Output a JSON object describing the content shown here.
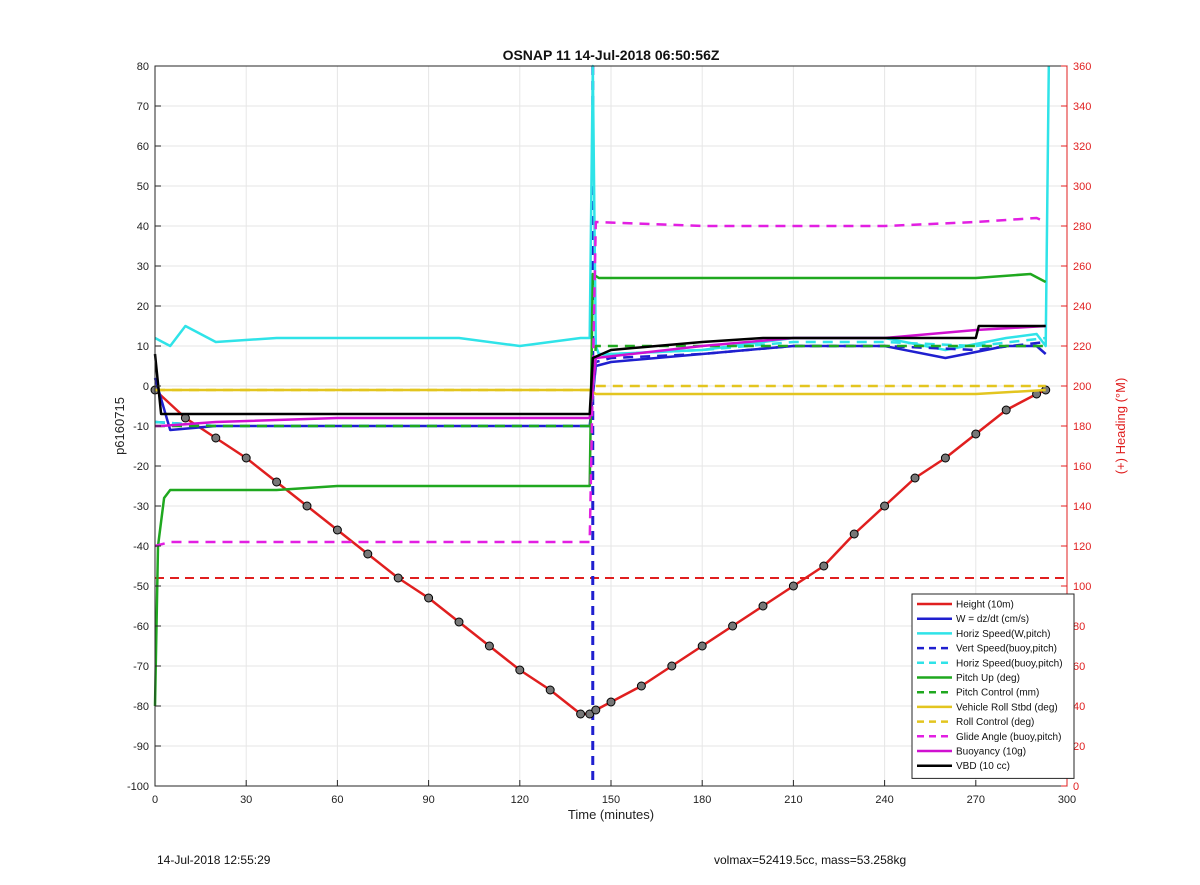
{
  "chart_data": {
    "type": "line",
    "title": "OSNAP 11 14-Jul-2018 06:50:56Z",
    "xlabel": "Time (minutes)",
    "ylabel": "p6160715",
    "y2label": "(+) Heading (°M)",
    "xlim": [
      0,
      300
    ],
    "ylim": [
      -100,
      80
    ],
    "y2lim": [
      0,
      360
    ],
    "xticks": [
      0,
      30,
      60,
      90,
      120,
      150,
      180,
      210,
      240,
      270,
      300
    ],
    "yticks": [
      -100,
      -90,
      -80,
      -70,
      -60,
      -50,
      -40,
      -30,
      -20,
      -10,
      0,
      10,
      20,
      30,
      40,
      50,
      60,
      70,
      80
    ],
    "y2ticks": [
      0,
      20,
      40,
      60,
      80,
      100,
      120,
      140,
      160,
      180,
      200,
      220,
      240,
      260,
      280,
      300,
      320,
      340,
      360
    ],
    "grid": true,
    "legend_position": "bottom-right",
    "series": [
      {
        "name": "Height (10m)",
        "color": "#e01f1f",
        "style": "solid-markers",
        "x": [
          0,
          10,
          20,
          30,
          40,
          50,
          60,
          70,
          80,
          90,
          100,
          110,
          120,
          130,
          140,
          143,
          145,
          150,
          160,
          170,
          180,
          190,
          200,
          210,
          220,
          230,
          240,
          250,
          260,
          270,
          280,
          290,
          293
        ],
        "y": [
          -1,
          -8,
          -13,
          -18,
          -24,
          -30,
          -36,
          -42,
          -48,
          -53,
          -59,
          -65,
          -71,
          -76,
          -82,
          -82,
          -81,
          -79,
          -75,
          -70,
          -65,
          -60,
          -55,
          -50,
          -45,
          -37,
          -30,
          -23,
          -18,
          -12,
          -6,
          -2,
          -1
        ]
      },
      {
        "name": "W = dz/dt (cm/s)",
        "color": "#1f1fcf",
        "style": "solid",
        "x": [
          0,
          5,
          20,
          60,
          100,
          143,
          145,
          150,
          180,
          210,
          240,
          260,
          280,
          290,
          293
        ],
        "y": [
          2,
          -11,
          -10,
          -10,
          -10,
          -10,
          5,
          6,
          8,
          10,
          10,
          7,
          10,
          10,
          8
        ]
      },
      {
        "name": "Horiz Speed(W,pitch)",
        "color": "#2fe3e8",
        "style": "solid",
        "x": [
          0,
          5,
          10,
          20,
          40,
          60,
          80,
          100,
          120,
          140,
          143,
          144,
          145,
          146,
          150,
          180,
          210,
          240,
          260,
          280,
          290,
          293,
          294
        ],
        "y": [
          12,
          10,
          15,
          11,
          12,
          12,
          12,
          12,
          10,
          12,
          12,
          80,
          10,
          8,
          8,
          9,
          12,
          12,
          9,
          12,
          13,
          10,
          80
        ]
      },
      {
        "name": "Vert Speed(buoy,pitch)",
        "color": "#1f1fcf",
        "style": "dashed",
        "x": [
          0,
          20,
          60,
          100,
          143,
          145,
          150,
          180,
          210,
          240,
          270,
          293
        ],
        "y": [
          -9,
          -10,
          -10,
          -10,
          -10,
          6,
          7,
          8,
          10,
          10,
          9,
          11
        ]
      },
      {
        "name": "Horiz Speed(buoy,pitch)",
        "color": "#2fe3e8",
        "style": "dashed",
        "x": [
          0,
          20,
          60,
          100,
          143,
          145,
          150,
          180,
          210,
          240,
          270,
          293
        ],
        "y": [
          -9,
          -10,
          -10,
          -10,
          -10,
          7,
          8,
          9,
          11,
          11,
          10,
          12
        ]
      },
      {
        "name": "Pitch Up (deg)",
        "color": "#1fa81f",
        "style": "solid",
        "x": [
          0,
          1,
          3,
          5,
          20,
          40,
          60,
          80,
          100,
          120,
          140,
          143,
          144,
          146,
          150,
          180,
          210,
          240,
          270,
          288,
          293
        ],
        "y": [
          -80,
          -40,
          -28,
          -26,
          -26,
          -26,
          -25,
          -25,
          -25,
          -25,
          -25,
          -25,
          28,
          27,
          27,
          27,
          27,
          27,
          27,
          28,
          26
        ]
      },
      {
        "name": "Pitch Control (mm)",
        "color": "#1fa81f",
        "style": "dashed",
        "x": [
          0,
          20,
          60,
          100,
          143,
          145,
          180,
          210,
          240,
          270,
          293
        ],
        "y": [
          -10,
          -10,
          -10,
          -10,
          -10,
          10,
          10,
          10,
          10,
          10,
          10
        ]
      },
      {
        "name": "Vehicle Roll Stbd (deg)",
        "color": "#e3c51f",
        "style": "solid",
        "x": [
          0,
          20,
          60,
          100,
          143,
          145,
          180,
          210,
          240,
          270,
          293
        ],
        "y": [
          -1,
          -1,
          -1,
          -1,
          -1,
          -2,
          -2,
          -2,
          -2,
          -2,
          -1
        ]
      },
      {
        "name": "Roll Control (deg)",
        "color": "#e3c51f",
        "style": "dashed",
        "x": [
          0,
          20,
          60,
          100,
          143,
          145,
          180,
          210,
          240,
          270,
          293
        ],
        "y": [
          -1,
          -1,
          -1,
          -1,
          -1,
          0,
          0,
          0,
          0,
          0,
          0
        ]
      },
      {
        "name": "Glide Angle (buoy,pitch)",
        "color": "#e21fe2",
        "style": "dashed",
        "x": [
          0,
          5,
          20,
          60,
          100,
          143,
          145,
          180,
          210,
          240,
          270,
          290,
          293
        ],
        "y": [
          -40,
          -39,
          -39,
          -39,
          -39,
          -39,
          41,
          40,
          40,
          40,
          41,
          42,
          41
        ]
      },
      {
        "name": "Buoyancy (10g)",
        "color": "#d010d0",
        "style": "solid",
        "x": [
          0,
          2,
          20,
          60,
          100,
          143,
          145,
          180,
          210,
          240,
          270,
          293
        ],
        "y": [
          -10,
          -10,
          -9,
          -8,
          -8,
          -8,
          7,
          10,
          12,
          12,
          14,
          15
        ]
      },
      {
        "name": "VBD (10 cc)",
        "color": "#000000",
        "style": "solid",
        "x": [
          0,
          2,
          143,
          144,
          150,
          165,
          180,
          200,
          220,
          240,
          270,
          271,
          293
        ],
        "y": [
          8,
          -7,
          -7,
          7,
          9,
          10,
          11,
          12,
          12,
          12,
          12,
          15,
          15
        ]
      }
    ],
    "reference_lines": [
      {
        "type": "horizontal",
        "y": -48,
        "color": "#e01f1f",
        "style": "dashed"
      },
      {
        "type": "vertical",
        "x": 144,
        "color": "#1f1fcf",
        "style": "dashed"
      }
    ]
  },
  "footer": {
    "left": "14-Jul-2018 12:55:29",
    "right": "volmax=52419.5cc, mass=53.258kg"
  }
}
